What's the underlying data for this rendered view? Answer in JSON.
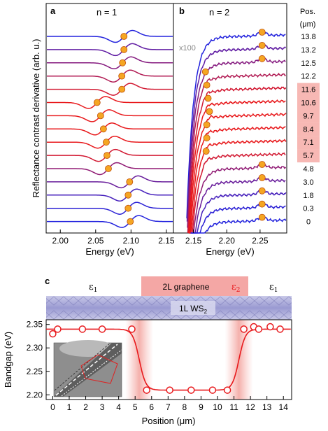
{
  "chart_data": [
    {
      "type": "line",
      "panel_label": "a",
      "title": "n = 1",
      "xlabel": "Energy (eV)",
      "ylabel": "Reflectance contrast derivative (arb. u.)",
      "xlim": [
        1.98,
        2.16
      ],
      "xticks": [
        "2.00",
        "2.05",
        "2.10",
        "2.15"
      ],
      "series_positions_um": [
        "13.8",
        "13.2",
        "12.5",
        "12.2",
        "11.6",
        "10.6",
        "9.7",
        "8.4",
        "7.1",
        "5.7",
        "4.8",
        "3.0",
        "1.8",
        "0.3",
        "0"
      ],
      "peak_energies_eV": [
        2.09,
        2.09,
        2.088,
        2.087,
        2.087,
        2.052,
        2.057,
        2.061,
        2.065,
        2.066,
        2.068,
        2.098,
        2.096,
        2.096,
        2.099
      ]
    },
    {
      "type": "line",
      "panel_label": "b",
      "title": "n = 2",
      "xlabel": "Energy (eV)",
      "xlim": [
        2.12,
        2.29
      ],
      "xticks": [
        "2.15",
        "2.20",
        "2.25"
      ],
      "scale_annotation": "x100",
      "series_positions_um": [
        "13.8",
        "13.2",
        "12.5",
        "12.2",
        "11.6",
        "10.6",
        "9.7",
        "8.4",
        "7.1",
        "5.7",
        "4.8",
        "3.0",
        "1.8",
        "0.3",
        "0"
      ],
      "peak_energies_eV": [
        2.253,
        2.253,
        2.253,
        2.168,
        2.17,
        2.172,
        2.174,
        2.17,
        2.17,
        2.169,
        2.253,
        2.253,
        2.253,
        2.253,
        2.253
      ]
    },
    {
      "type": "scatter",
      "panel_label": "c",
      "xlabel": "Position (μm)",
      "ylabel": "Bandgap (eV)",
      "xlim": [
        -0.4,
        14.5
      ],
      "ylim": [
        2.19,
        2.36
      ],
      "xticks": [
        "0",
        "1",
        "2",
        "3",
        "4",
        "5",
        "6",
        "7",
        "8",
        "9",
        "10",
        "11",
        "12",
        "13",
        "14"
      ],
      "yticks": [
        "2.20",
        "2.25",
        "2.30",
        "2.35"
      ],
      "x": [
        0,
        0.3,
        1.8,
        3.0,
        4.8,
        5.7,
        7.1,
        8.4,
        9.7,
        10.6,
        11.6,
        12.2,
        12.5,
        13.2,
        13.8
      ],
      "y": [
        2.33,
        2.34,
        2.34,
        2.34,
        2.34,
        2.21,
        2.21,
        2.21,
        2.21,
        2.21,
        2.34,
        2.345,
        2.34,
        2.345,
        2.34
      ]
    }
  ],
  "legend": {
    "pos_header": "Pos.",
    "pos_unit": "(μm)",
    "highlighted": [
      "11.6",
      "10.6",
      "9.7",
      "8.4",
      "7.1",
      "5.7"
    ]
  },
  "schematic": {
    "eps_left": "ε",
    "eps_left_sub": "1",
    "eps_mid": "ε",
    "eps_mid_sub": "2",
    "eps_right": "ε",
    "eps_right_sub": "1",
    "graphene_label": "2L graphene",
    "ws2_label": "1L WS",
    "ws2_sub": "2"
  },
  "colors": {
    "blue": "#2222dd",
    "red": "#e8191c",
    "purple": "#7a1a8a",
    "marker_fill": "#f5a623",
    "marker_stroke": "#c0500a",
    "highlight": "#f7b8b4"
  }
}
